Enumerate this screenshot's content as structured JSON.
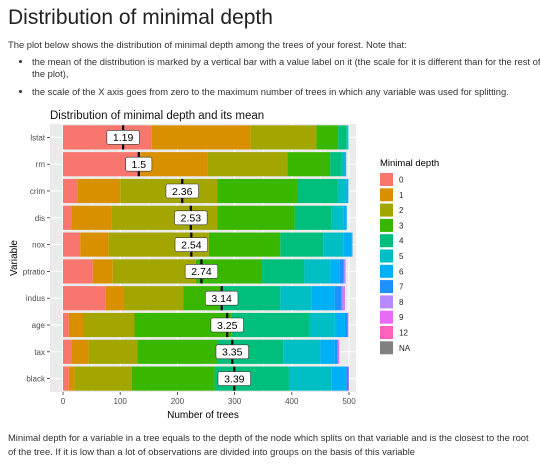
{
  "page": {
    "title": "Distribution of minimal depth",
    "intro": "The plot below shows the distribution of minimal depth among the trees of your forest. Note that:",
    "bullets": [
      "the mean of the distribution is marked by a vertical bar with a value label on it (the scale for it is different than for the rest of the plot),",
      "the scale of the X axis goes from zero to the maximum number of trees in which any variable was used for splitting."
    ],
    "footer": "Minimal depth for a variable in a tree equals to the depth of the node which splits on that variable and is the closest to the root of the tree. If it is low than a lot of observations are divided into groups on the basis of this variable"
  },
  "chart_data": {
    "type": "bar",
    "orientation": "horizontal",
    "stacked": true,
    "title": "Distribution of minimal depth and its mean",
    "xlabel": "Number of trees",
    "ylabel": "Variable",
    "xlim": [
      0,
      500
    ],
    "xticks": [
      0,
      100,
      200,
      300,
      400,
      500
    ],
    "grid": true,
    "legend": {
      "title": "Minimal depth",
      "position": "right",
      "entries": [
        "0",
        "1",
        "2",
        "3",
        "4",
        "5",
        "6",
        "7",
        "8",
        "9",
        "12",
        "NA"
      ]
    },
    "colors": [
      "#F8766D",
      "#D89000",
      "#A3A500",
      "#39B600",
      "#00BF7D",
      "#00BFC4",
      "#00B0F6",
      "#1E90FF",
      "#B98AFF",
      "#E76BF3",
      "#FF62BC",
      "#808080"
    ],
    "categories": [
      "lstat",
      "rm",
      "crim",
      "dis",
      "nox",
      "ptratio",
      "indus",
      "age",
      "tax",
      "black"
    ],
    "series": [
      {
        "name": "0",
        "values": [
          155,
          135,
          25,
          15,
          30,
          52,
          75,
          10,
          15,
          10
        ]
      },
      {
        "name": "1",
        "values": [
          173,
          117,
          75,
          70,
          50,
          35,
          30,
          25,
          30,
          10
        ]
      },
      {
        "name": "2",
        "values": [
          115,
          140,
          170,
          185,
          175,
          145,
          105,
          90,
          85,
          100
        ]
      },
      {
        "name": "3",
        "values": [
          38,
          75,
          140,
          135,
          125,
          115,
          65,
          170,
          140,
          145
        ]
      },
      {
        "name": "4",
        "values": [
          15,
          20,
          70,
          65,
          75,
          75,
          105,
          135,
          115,
          130
        ]
      },
      {
        "name": "5",
        "values": [
          2,
          5,
          15,
          20,
          35,
          45,
          55,
          45,
          65,
          75
        ]
      },
      {
        "name": "6",
        "values": [
          1,
          3,
          4,
          6,
          15,
          17,
          40,
          18,
          25,
          25
        ]
      },
      {
        "name": "7",
        "values": [
          0,
          0,
          0,
          0,
          1,
          7,
          12,
          5,
          5,
          4
        ]
      },
      {
        "name": "8",
        "values": [
          0,
          0,
          0,
          0,
          0,
          3,
          5,
          1,
          1,
          0
        ]
      },
      {
        "name": "9",
        "values": [
          0,
          0,
          0,
          0,
          0,
          0,
          1,
          0,
          2,
          1
        ]
      },
      {
        "name": "12",
        "values": [
          0,
          0,
          0,
          0,
          0,
          0,
          0,
          0,
          0,
          0
        ]
      },
      {
        "name": "NA",
        "values": [
          0,
          0,
          0,
          0,
          0,
          0,
          0,
          0,
          0,
          0
        ]
      }
    ],
    "mean_minimal_depth": [
      1.19,
      1.5,
      2.36,
      2.53,
      2.54,
      2.74,
      3.14,
      3.25,
      3.35,
      3.39
    ],
    "mean_labels": [
      "1.19",
      "1.5",
      "2.36",
      "2.53",
      "2.54",
      "2.74",
      "3.14",
      "3.25",
      "3.35",
      "3.39"
    ]
  }
}
